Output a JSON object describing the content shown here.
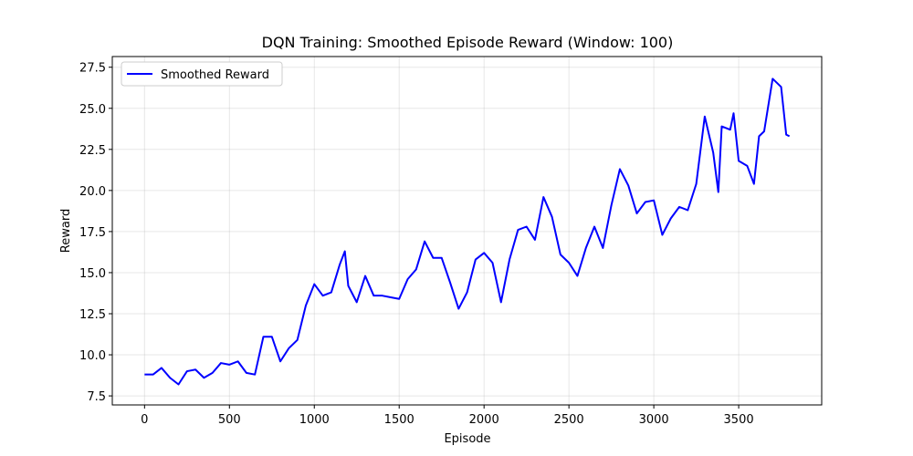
{
  "chart_data": {
    "type": "line",
    "title": "DQN Training: Smoothed Episode Reward (Window: 100)",
    "x_label": "Episode",
    "y_label": "Reward",
    "x": [
      0,
      50,
      100,
      150,
      200,
      250,
      300,
      350,
      400,
      450,
      500,
      550,
      600,
      650,
      700,
      750,
      800,
      850,
      900,
      950,
      1000,
      1050,
      1100,
      1150,
      1180,
      1200,
      1250,
      1300,
      1350,
      1400,
      1450,
      1500,
      1550,
      1600,
      1650,
      1700,
      1750,
      1800,
      1850,
      1900,
      1950,
      2000,
      2050,
      2100,
      2150,
      2200,
      2250,
      2300,
      2350,
      2400,
      2450,
      2500,
      2550,
      2600,
      2650,
      2700,
      2750,
      2800,
      2850,
      2900,
      2950,
      3000,
      3050,
      3100,
      3150,
      3200,
      3250,
      3300,
      3350,
      3380,
      3400,
      3450,
      3470,
      3500,
      3550,
      3590,
      3620,
      3650,
      3700,
      3750,
      3780,
      3799
    ],
    "series": [
      {
        "name": "Smoothed Reward",
        "color": "#0000ff",
        "values": [
          8.8,
          8.8,
          9.2,
          8.6,
          8.2,
          9.0,
          9.1,
          8.6,
          8.9,
          9.5,
          9.4,
          9.6,
          8.9,
          8.8,
          11.1,
          11.1,
          9.6,
          10.4,
          10.9,
          13.0,
          14.3,
          13.6,
          13.8,
          15.5,
          16.3,
          14.2,
          13.2,
          14.8,
          13.6,
          13.6,
          13.5,
          13.4,
          14.6,
          15.2,
          16.9,
          15.9,
          15.9,
          14.4,
          12.8,
          13.8,
          15.8,
          16.2,
          15.6,
          13.2,
          15.8,
          17.6,
          17.8,
          17.0,
          19.6,
          18.4,
          16.1,
          15.6,
          14.8,
          16.5,
          17.8,
          16.5,
          19.1,
          21.3,
          20.3,
          18.6,
          19.3,
          19.4,
          17.3,
          18.3,
          19.0,
          18.8,
          20.4,
          24.5,
          22.3,
          19.9,
          23.9,
          23.7,
          24.7,
          21.8,
          21.5,
          20.4,
          23.3,
          23.6,
          26.8,
          26.3,
          23.4,
          23.3
        ]
      }
    ],
    "xlim": [
      -190,
      3989
    ],
    "xticks": [
      0,
      500,
      1000,
      1500,
      2000,
      2500,
      3000,
      3500
    ],
    "ylim": [
      6.95,
      28.15
    ],
    "yticks": [
      7.5,
      {
        "value": 10,
        "label": "10.0"
      },
      12.5,
      {
        "value": 15,
        "label": "15.0"
      },
      17.5,
      {
        "value": 20,
        "label": "20.0"
      },
      22.5,
      {
        "value": 25,
        "label": "25.0"
      },
      27.5
    ],
    "grid": true,
    "legend": "upper-left"
  }
}
